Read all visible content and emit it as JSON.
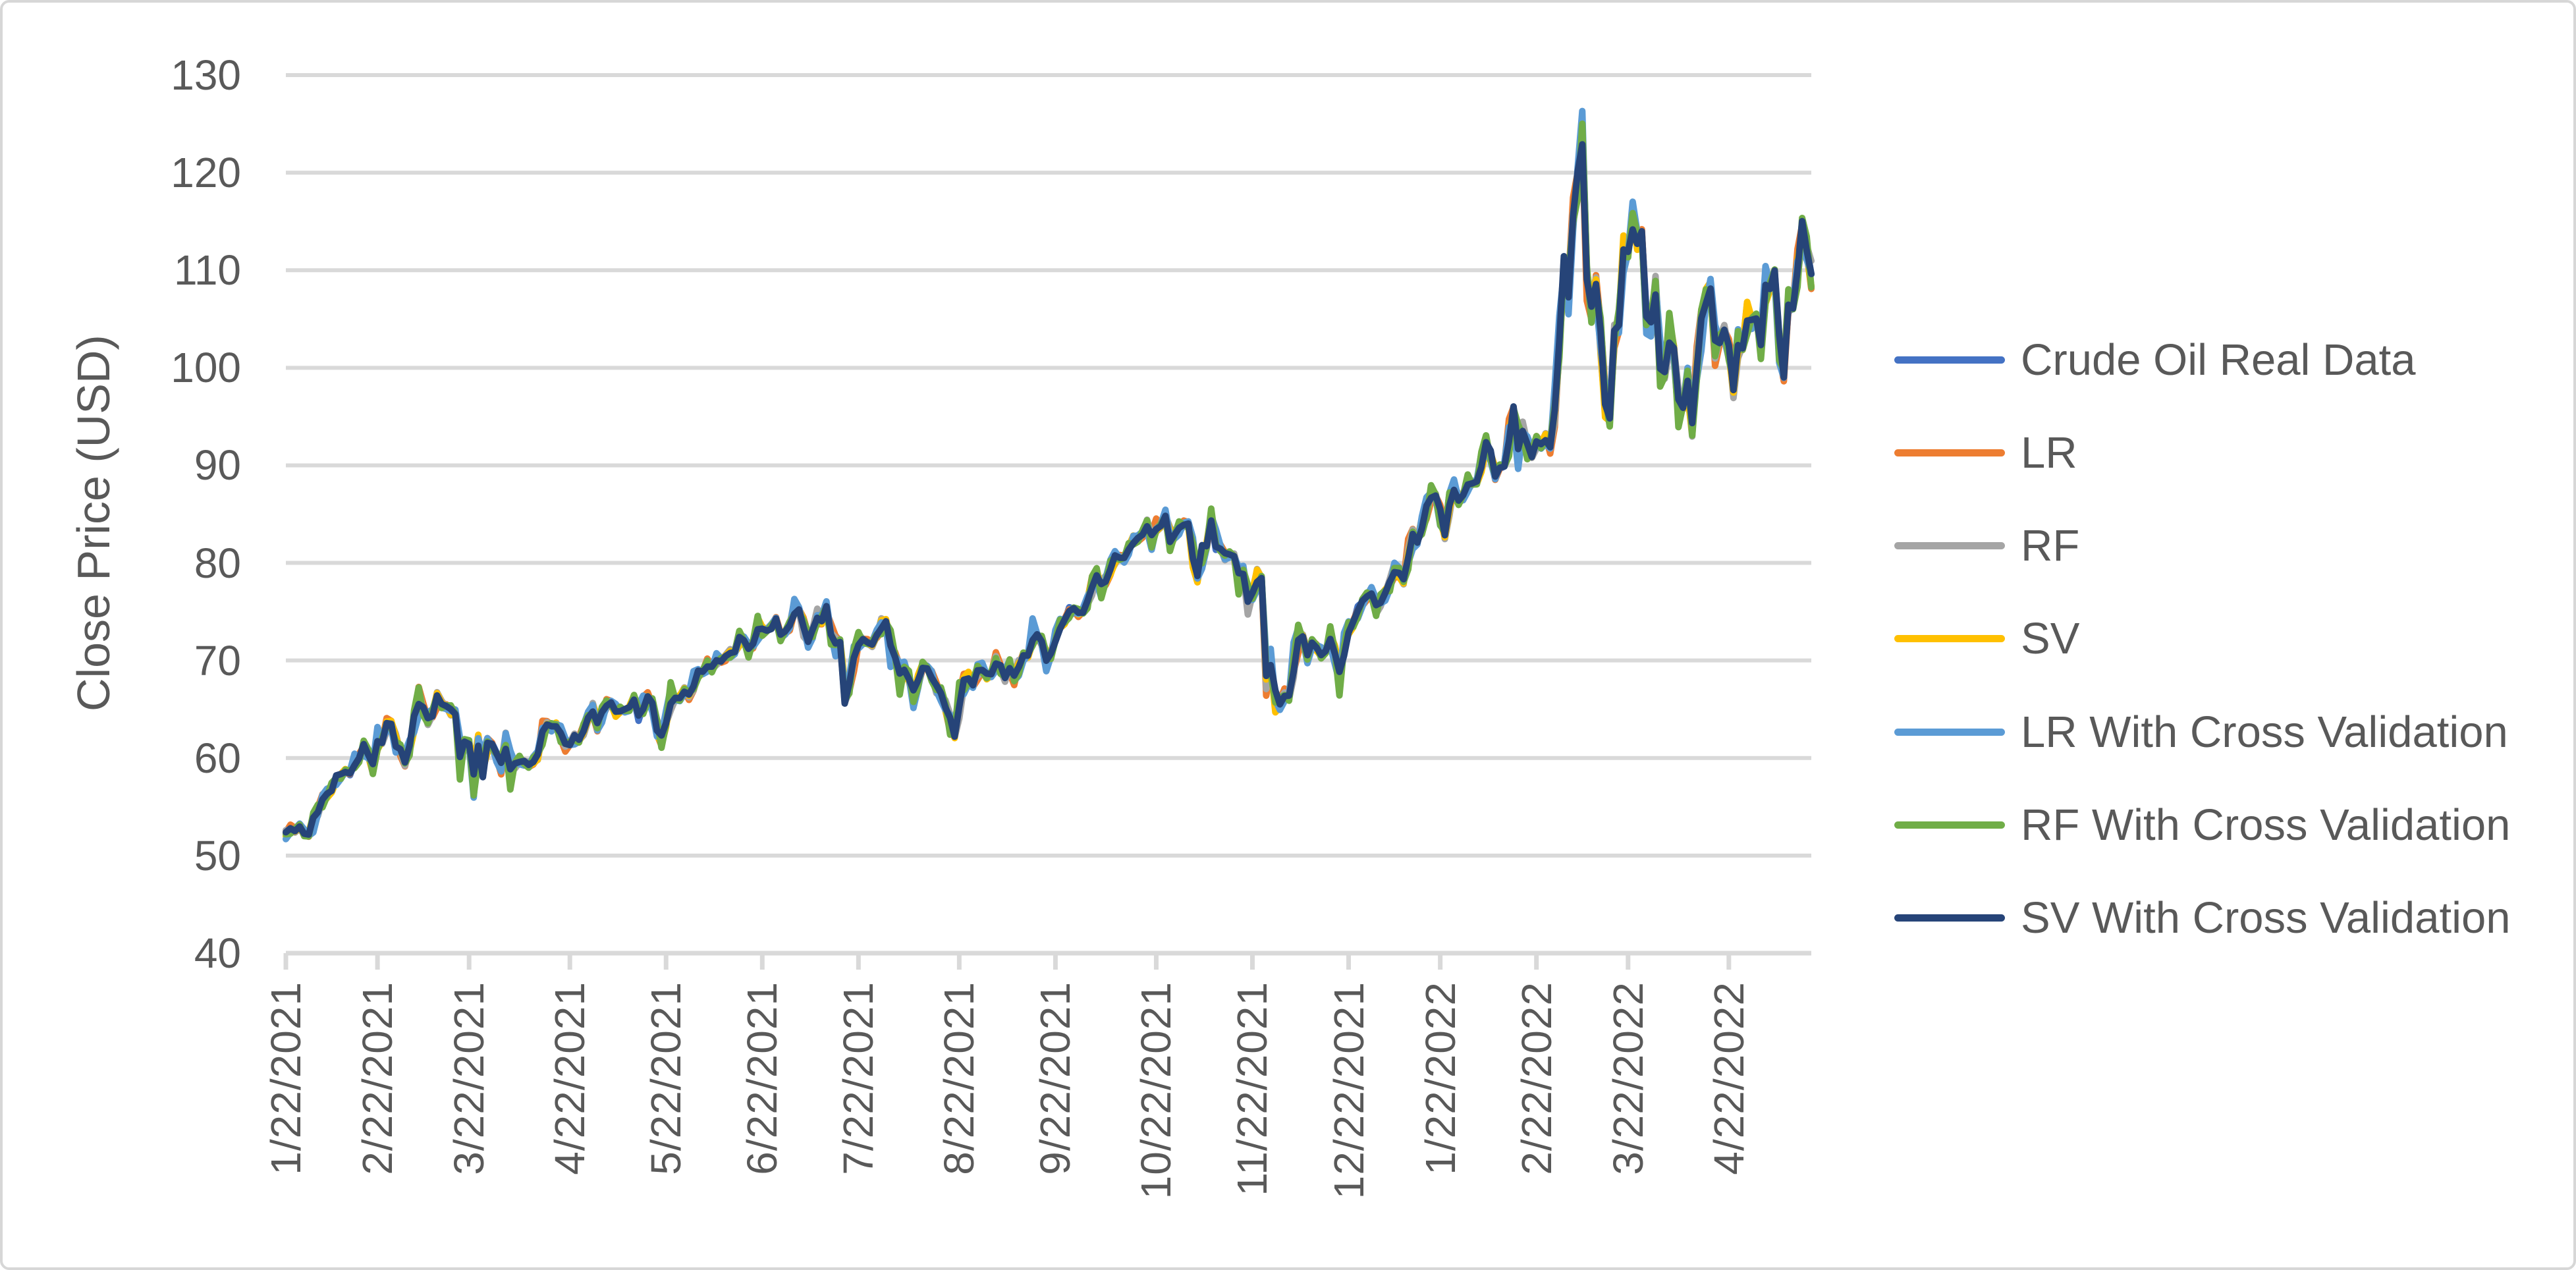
{
  "window": {
    "background": "#ffffff",
    "border_color": "#d7d7d7"
  },
  "chart_data": {
    "type": "line",
    "title": "",
    "xlabel": "",
    "ylabel": "Close Price (USD)",
    "ylim": [
      40,
      130
    ],
    "y_ticks": [
      130,
      120,
      110,
      100,
      90,
      80,
      70,
      60,
      50,
      40
    ],
    "grid": "horizontal",
    "gridline_color": "#d9d9d9",
    "axis_text_color": "#595959",
    "legend_position": "right",
    "x_tick_labels": [
      "1/22/2021",
      "2/22/2021",
      "3/22/2021",
      "4/22/2021",
      "5/22/2021",
      "6/22/2021",
      "7/22/2021",
      "8/22/2021",
      "9/22/2021",
      "10/22/2021",
      "11/22/2021",
      "12/22/2021",
      "1/22/2022",
      "2/22/2022",
      "3/22/2022",
      "4/22/2022"
    ],
    "x_tick_indices": [
      0,
      20,
      40,
      62,
      83,
      104,
      125,
      147,
      168,
      190,
      211,
      232,
      252,
      273,
      293,
      315
    ],
    "n_points": 334,
    "x_range_note": "Daily close prices, 1/22/2021 through mid-May 2022",
    "series": [
      {
        "name": "Crude Oil Real Data",
        "color": "#4472C4",
        "values": [
          52.27,
          52.77,
          52.61,
          52.85,
          52.34,
          52.2,
          53.55,
          54.76,
          55.69,
          56.23,
          56.85,
          57.97,
          58.36,
          58.68,
          58.24,
          59.47,
          60.05,
          61.14,
          60.52,
          59.24,
          61.49,
          61.67,
          63.22,
          63.53,
          61.5,
          60.64,
          59.75,
          61.28,
          63.83,
          66.09,
          65.05,
          64.01,
          64.44,
          66.02,
          65.61,
          65.39,
          64.8,
          64.6,
          60.0,
          61.42,
          61.55,
          57.76,
          61.18,
          58.56,
          60.97,
          61.56,
          60.55,
          59.16,
          61.45,
          58.65,
          59.33,
          59.77,
          59.6,
          59.32,
          59.7,
          60.18,
          63.15,
          63.46,
          63.13,
          63.38,
          62.44,
          61.35,
          61.43,
          62.14,
          61.91,
          62.94,
          63.86,
          65.01,
          63.58,
          64.49,
          65.69,
          65.63,
          64.71,
          64.9,
          64.92,
          65.28,
          66.08,
          63.82,
          65.37,
          66.27,
          65.49,
          63.36,
          62.05,
          63.58,
          66.05,
          66.07,
          66.21,
          66.85,
          66.32,
          67.72,
          68.83,
          68.81,
          69.62,
          69.23,
          70.05,
          69.96,
          70.29,
          70.91,
          70.88,
          72.12,
          72.15,
          71.04,
          71.64,
          73.66,
          73.06,
          73.08,
          73.3,
          74.05,
          72.91,
          72.98,
          73.47,
          75.23,
          75.16,
          73.37,
          72.2,
          72.94,
          74.56,
          74.1,
          75.25,
          73.13,
          71.65,
          71.81,
          66.42,
          67.42,
          70.3,
          71.91,
          72.07,
          71.91,
          71.65,
          72.39,
          73.62,
          73.95,
          71.26,
          70.56,
          68.15,
          69.09,
          68.28,
          66.48,
          68.29,
          69.25,
          69.09,
          68.44,
          67.29,
          66.59,
          65.46,
          63.69,
          62.32,
          65.64,
          67.54,
          68.36,
          67.42,
          68.74,
          69.21,
          68.5,
          68.59,
          69.99,
          69.29,
          68.35,
          69.3,
          68.14,
          69.72,
          70.45,
          70.46,
          72.61,
          72.61,
          71.97,
          70.29,
          70.56,
          72.23,
          73.3,
          73.98,
          75.45,
          75.29,
          74.83,
          75.03,
          75.88,
          77.62,
          78.93,
          77.43,
          78.3,
          79.35,
          80.52,
          80.64,
          80.44,
          81.31,
          82.28,
          82.44,
          82.96,
          83.87,
          82.5,
          83.76,
          83.76,
          84.65,
          82.66,
          82.81,
          83.57,
          84.05,
          83.91,
          80.86,
          78.81,
          81.27,
          81.93,
          84.15,
          81.34,
          81.59,
          80.79,
          80.88,
          80.76,
          78.36,
          79.01,
          76.1,
          76.75,
          78.5,
          78.39,
          68.15,
          69.95,
          66.18,
          65.57,
          66.5,
          66.26,
          69.49,
          72.05,
          72.36,
          70.94,
          71.67,
          71.29,
          70.73,
          70.87,
          72.38,
          70.86,
          68.23,
          71.12,
          72.76,
          73.79,
          75.57,
          75.98,
          76.56,
          76.99,
          75.21,
          76.08,
          76.99,
          77.85,
          79.46,
          78.9,
          78.23,
          81.22,
          82.64,
          82.12,
          83.82,
          85.43,
          86.96,
          86.9,
          85.14,
          83.31,
          85.6,
          87.35,
          86.61,
          86.82,
          88.15,
          88.2,
          88.26,
          90.27,
          92.31,
          91.32,
          89.36,
          89.66,
          89.88,
          93.1,
          95.46,
          92.07,
          93.66,
          91.76,
          91.07,
          92.35,
          92.1,
          92.81,
          91.59,
          95.72,
          103.41,
          110.6,
          107.67,
          115.68,
          119.4,
          123.7,
          108.7,
          106.02,
          109.33,
          103.01,
          96.44,
          95.04,
          102.98,
          104.7,
          112.12,
          111.76,
          114.93,
          112.34,
          113.9,
          105.96,
          104.24,
          107.82,
          100.28,
          99.27,
          103.28,
          101.96,
          96.23,
          96.03,
          98.26,
          94.29,
          100.6,
          104.25,
          106.95,
          108.21,
          102.05,
          102.75,
          103.79,
          102.07,
          98.54,
          101.7,
          102.02,
          105.36,
          104.69,
          105.17,
          102.41,
          107.81,
          108.26,
          109.77,
          103.09,
          99.76,
          105.71,
          106.13,
          110.49,
          114.2,
          112.4,
          109.59
        ]
      },
      {
        "name": "LR",
        "color": "#ED7D31",
        "derived_from": "Crude Oil Real Data",
        "deviation": {
          "amp": 0.55,
          "freq": 0.9,
          "phase": 0.3
        },
        "note": "Prediction overlaps real data within ~±2 USD"
      },
      {
        "name": "RF",
        "color": "#A5A5A5",
        "derived_from": "Crude Oil Real Data",
        "deviation": {
          "amp": 0.5,
          "freq": 1.3,
          "phase": 2.1
        },
        "note": "Prediction overlaps real data within ~±2 USD"
      },
      {
        "name": "SV",
        "color": "#FFC000",
        "derived_from": "Crude Oil Real Data",
        "deviation": {
          "amp": 0.45,
          "freq": 0.7,
          "phase": 4.2
        },
        "note": "Prediction overlaps real data within ~±2 USD"
      },
      {
        "name": "LR With Cross Validation",
        "color": "#5B9BD5",
        "derived_from": "Crude Oil Real Data",
        "deviation": {
          "amp": 0.78,
          "freq": 1.1,
          "phase": 4.4
        },
        "note": "Prediction overlaps real data within ~±2.5 USD; highest at March 2022 spike"
      },
      {
        "name": "RF With Cross Validation",
        "color": "#70AD47",
        "derived_from": "Crude Oil Real Data",
        "deviation": {
          "amp": 0.7,
          "freq": 1.7,
          "phase": 3.3
        },
        "note": "Prediction overlaps real data within ~±2.5 USD"
      },
      {
        "name": "SV With Cross Validation",
        "color": "#264478",
        "derived_from": "Crude Oil Real Data",
        "deviation": {
          "amp": 0.25,
          "freq": 2.3,
          "phase": 0.7
        },
        "note": "Drawn on top; hugs real data tightly"
      }
    ]
  }
}
